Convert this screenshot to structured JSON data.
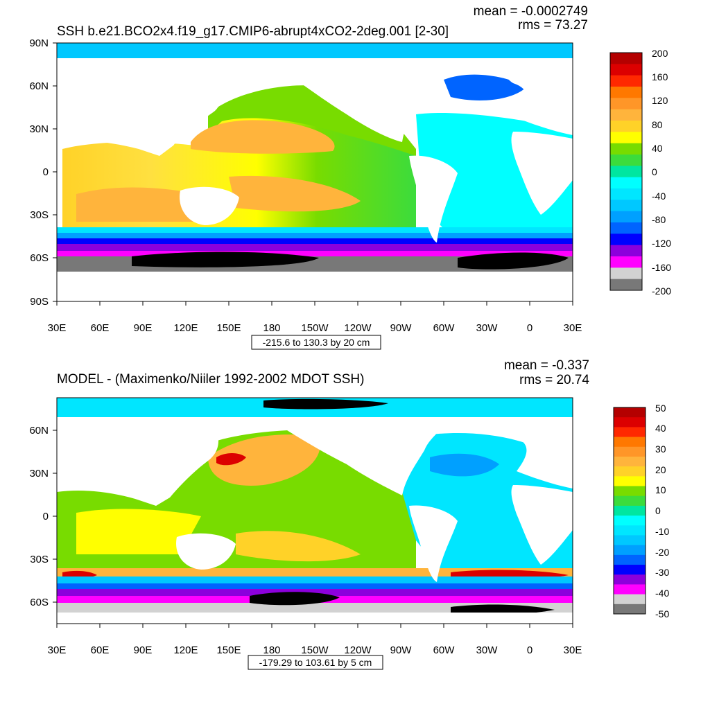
{
  "panels": [
    {
      "title": "SSH b.e21.BCO2x4.f19_g17.CMIP6-abrupt4xCO2-2deg.001 [2-30]",
      "mean_text": "mean = -0.0002749",
      "rms_text": "rms = 73.27",
      "lat_labels": [
        "90N",
        "60N",
        "30N",
        "0",
        "30S",
        "60S",
        "90S"
      ],
      "lon_labels": [
        "30E",
        "60E",
        "90E",
        "120E",
        "150E",
        "180",
        "150W",
        "120W",
        "90W",
        "60W",
        "30W",
        "0",
        "30E"
      ],
      "contour_info": "-215.6 to 130.3 by 20 cm",
      "colorbar_labels": [
        "200",
        "160",
        "120",
        "80",
        "40",
        "0",
        "-40",
        "-80",
        "-120",
        "-160",
        "-200"
      ],
      "colorbar_colors": [
        "#b40000",
        "#dc0000",
        "#ff2800",
        "#ff7800",
        "#ff9628",
        "#ffb43c",
        "#ffd228",
        "#ffff00",
        "#78dc00",
        "#3cdc3c",
        "#00e6a0",
        "#00ffff",
        "#00e6ff",
        "#00c8ff",
        "#00a0ff",
        "#0064ff",
        "#0000ff",
        "#8c00dc",
        "#ff00ff",
        "#d2d2d2",
        "#787878"
      ]
    },
    {
      "title": "MODEL - (Maximenko/Niiler 1992-2002 MDOT SSH)",
      "mean_text": "mean = -0.337",
      "rms_text": "rms = 20.74",
      "lat_labels": [
        "60N",
        "30N",
        "0",
        "30S",
        "60S"
      ],
      "lon_labels": [
        "30E",
        "60E",
        "90E",
        "120E",
        "150E",
        "180",
        "150W",
        "120W",
        "90W",
        "60W",
        "30W",
        "0",
        "30E"
      ],
      "contour_info": "-179.29 to 103.61 by 5 cm",
      "colorbar_labels": [
        "50",
        "40",
        "30",
        "20",
        "10",
        "0",
        "-10",
        "-20",
        "-30",
        "-40",
        "-50"
      ],
      "colorbar_colors": [
        "#b40000",
        "#dc0000",
        "#ff2800",
        "#ff7800",
        "#ff9628",
        "#ffb43c",
        "#ffd228",
        "#ffff00",
        "#78dc00",
        "#3cdc3c",
        "#00e6a0",
        "#00ffff",
        "#00e6ff",
        "#00c8ff",
        "#00a0ff",
        "#0064ff",
        "#0000ff",
        "#8c00dc",
        "#ff00ff",
        "#d2d2d2",
        "#787878"
      ]
    }
  ]
}
